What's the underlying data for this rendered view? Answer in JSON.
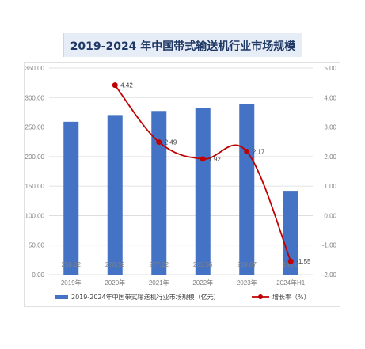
{
  "chart_data": {
    "type": "bar+line",
    "title": "2019-2024 年中国带式输送机行业市场规模",
    "categories": [
      "2019年",
      "2020年",
      "2021年",
      "2022年",
      "2023年",
      "2024年H1"
    ],
    "series": [
      {
        "name": "2019-2024年中国带式输送机行业市场规模（亿元）",
        "type": "bar",
        "axis": "left",
        "color": "#4472c4",
        "values": [
          259.02,
          270.39,
          277.22,
          282.56,
          289.07,
          142.0
        ],
        "value_labels": [
          "259.02",
          "270.39",
          "277.22",
          "282.56",
          "289.07",
          "142.0"
        ]
      },
      {
        "name": "增长率（%）",
        "type": "line",
        "axis": "right",
        "color": "#c00000",
        "values": [
          null,
          4.42,
          2.49,
          1.92,
          2.17,
          -1.55
        ],
        "value_labels": [
          "",
          "4.42",
          "2.49",
          "1.92",
          "2.17",
          "-1.55"
        ]
      }
    ],
    "y_left": {
      "min": 0,
      "max": 350,
      "ticks": [
        "0.00",
        "50.00",
        "100.00",
        "150.00",
        "200.00",
        "250.00",
        "300.00",
        "350.00"
      ]
    },
    "y_right": {
      "min": -2,
      "max": 5,
      "ticks": [
        "-2.00",
        "-1.00",
        "0.00",
        "1.00",
        "2.00",
        "3.00",
        "4.00",
        "5.00"
      ]
    },
    "grid": true,
    "legend_position": "bottom"
  }
}
